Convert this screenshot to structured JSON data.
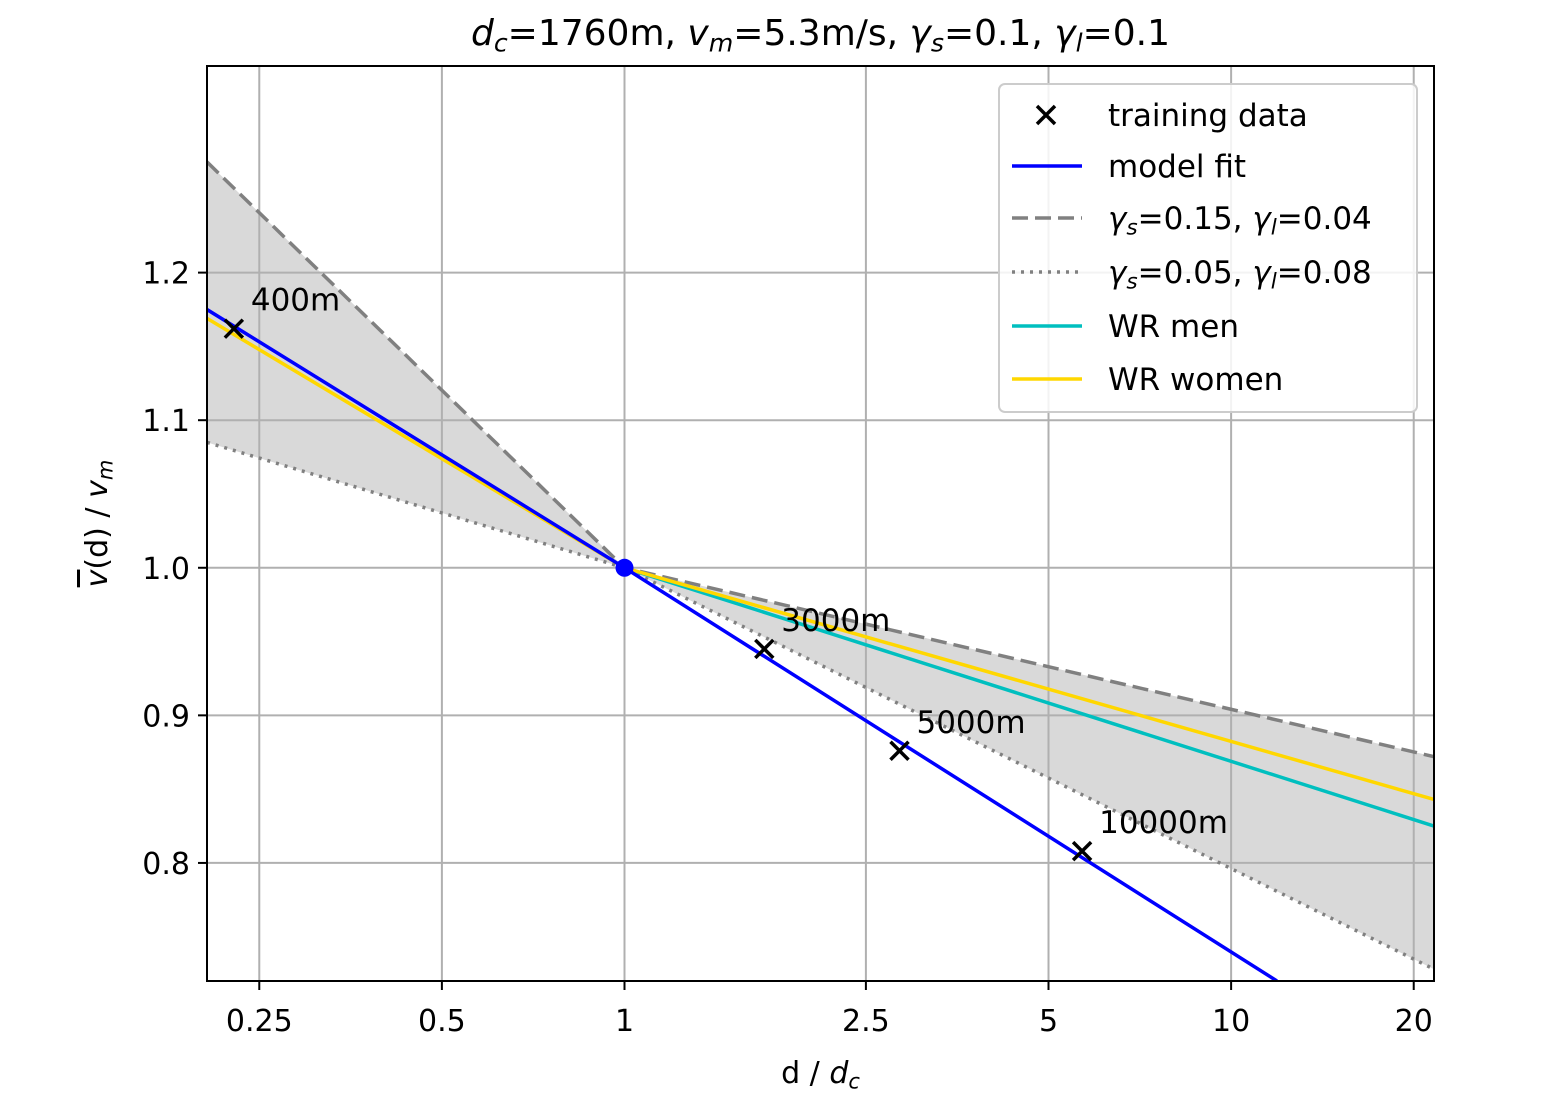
{
  "chart_data": {
    "type": "line",
    "title": {
      "parts": [
        {
          "sym": "d",
          "sub": "c",
          "rest": "=1760m, "
        },
        {
          "sym": "v",
          "sub": "m",
          "rest": "=5.3m/s, "
        },
        {
          "sym": "γ",
          "sub": "s",
          "rest": "=0.1, "
        },
        {
          "sym": "γ",
          "sub": "l",
          "rest": "=0.1"
        }
      ]
    },
    "xlabel": {
      "pre": "d / ",
      "sym": "d",
      "sub": "c"
    },
    "ylabel": {
      "sym": "v",
      "overline": true,
      "mid": "(d) / ",
      "sym2": "v",
      "sub2": "m"
    },
    "x_scale": "log",
    "xlim": [
      0.205,
      21.6
    ],
    "ylim": [
      0.72,
      1.34
    ],
    "x_ticks": [
      {
        "v": 0.25,
        "label": "0.25"
      },
      {
        "v": 0.5,
        "label": "0.5"
      },
      {
        "v": 1,
        "label": "1"
      },
      {
        "v": 2.5,
        "label": "2.5"
      },
      {
        "v": 5,
        "label": "5"
      },
      {
        "v": 10,
        "label": "10"
      },
      {
        "v": 20,
        "label": "20"
      }
    ],
    "y_ticks": [
      {
        "v": 0.8,
        "label": "0.8"
      },
      {
        "v": 0.9,
        "label": "0.9"
      },
      {
        "v": 1.0,
        "label": "1.0"
      },
      {
        "v": 1.1,
        "label": "1.1"
      },
      {
        "v": 1.2,
        "label": "1.2"
      }
    ],
    "grid": true,
    "legend_position": "top-right",
    "series": [
      {
        "key": "training",
        "name": "training data",
        "kind": "marker",
        "color": "#000000",
        "points": [
          {
            "x": 0.227,
            "y": 1.162,
            "label": "400m"
          },
          {
            "x": 1.7,
            "y": 0.945,
            "label": "3000m"
          },
          {
            "x": 2.84,
            "y": 0.876,
            "label": "5000m"
          },
          {
            "x": 5.68,
            "y": 0.808,
            "label": "10000m"
          }
        ]
      },
      {
        "key": "fit",
        "name": "model fit",
        "kind": "solid",
        "color": "#0000ff",
        "points": [
          {
            "x": 0.205,
            "y": 1.175
          },
          {
            "x": 1,
            "y": 1.0
          },
          {
            "x": 11.9,
            "y": 0.72
          }
        ]
      },
      {
        "key": "upper",
        "name": "γs=0.15, γl=0.04",
        "legend_parts": [
          [
            "γ",
            "s",
            "=0.15, "
          ],
          [
            "γ",
            "l",
            "=0.04"
          ]
        ],
        "kind": "dashed",
        "color": "#808080",
        "points": [
          {
            "x": 0.205,
            "y": 1.275
          },
          {
            "x": 1,
            "y": 1.0
          },
          {
            "x": 21.6,
            "y": 0.872
          }
        ]
      },
      {
        "key": "lower",
        "name": "γs=0.05, γl=0.08",
        "legend_parts": [
          [
            "γ",
            "s",
            "=0.05, "
          ],
          [
            "γ",
            "l",
            "=0.08"
          ]
        ],
        "kind": "dotted",
        "color": "#808080",
        "points": [
          {
            "x": 0.205,
            "y": 1.085
          },
          {
            "x": 1,
            "y": 1.0
          },
          {
            "x": 21.6,
            "y": 0.728
          }
        ]
      },
      {
        "key": "wrmen",
        "name": "WR men",
        "kind": "solid",
        "color": "#00bfbf",
        "points": [
          {
            "x": 1,
            "y": 1.0
          },
          {
            "x": 21.6,
            "y": 0.825
          }
        ]
      },
      {
        "key": "wrwomen",
        "name": "WR women",
        "kind": "solid",
        "color": "#ffd700",
        "points": [
          {
            "x": 0.205,
            "y": 1.169
          },
          {
            "x": 1,
            "y": 1.0
          },
          {
            "x": 21.6,
            "y": 0.843
          }
        ]
      }
    ],
    "anchor_point": {
      "x": 1,
      "y": 1.0,
      "color": "#0000ff"
    },
    "band_color": "#d9d9d9",
    "grid_color": "#b0b0b0"
  }
}
